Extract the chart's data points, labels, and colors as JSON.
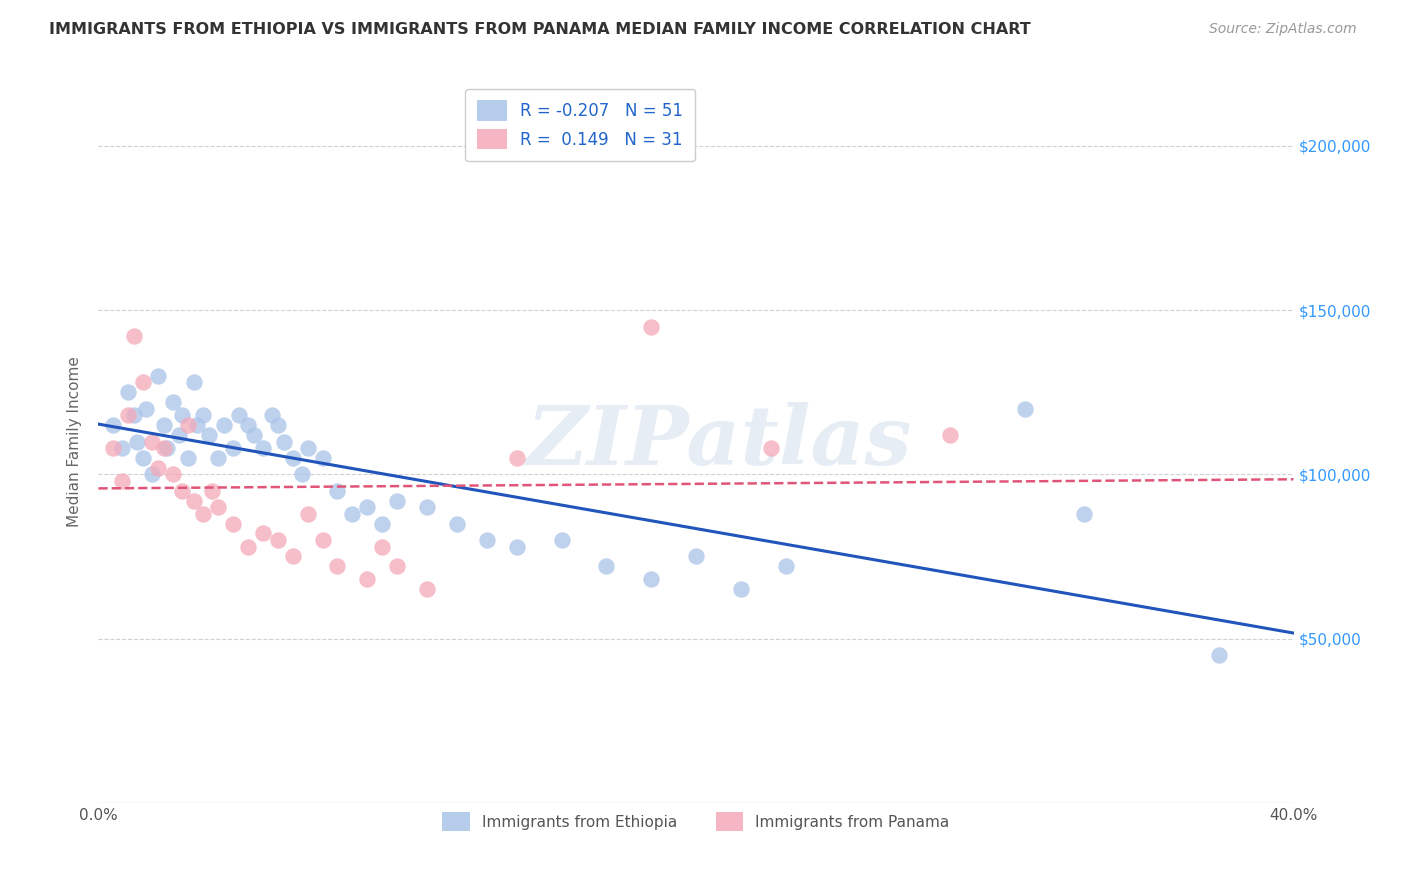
{
  "title": "IMMIGRANTS FROM ETHIOPIA VS IMMIGRANTS FROM PANAMA MEDIAN FAMILY INCOME CORRELATION CHART",
  "source": "Source: ZipAtlas.com",
  "ylabel": "Median Family Income",
  "xlim": [
    0.0,
    0.4
  ],
  "ylim": [
    0,
    220000
  ],
  "yticks": [
    0,
    50000,
    100000,
    150000,
    200000
  ],
  "ytick_labels_right": [
    "",
    "$50,000",
    "$100,000",
    "$150,000",
    "$200,000"
  ],
  "xticks": [
    0.0,
    0.1,
    0.2,
    0.3,
    0.4
  ],
  "xtick_labels": [
    "0.0%",
    "",
    "",
    "",
    "40.0%"
  ],
  "grid_color": "#cccccc",
  "background_color": "#ffffff",
  "ethiopia_color": "#aac4e8",
  "panama_color": "#f4a8b8",
  "ethiopia_line_color": "#2255bb",
  "panama_line_color": "#e05577",
  "ethiopia_R": -0.207,
  "ethiopia_N": 51,
  "panama_R": 0.149,
  "panama_N": 31,
  "ethiopia_scatter_x": [
    0.005,
    0.008,
    0.01,
    0.012,
    0.013,
    0.015,
    0.016,
    0.018,
    0.02,
    0.022,
    0.023,
    0.025,
    0.027,
    0.028,
    0.03,
    0.032,
    0.033,
    0.035,
    0.037,
    0.04,
    0.042,
    0.045,
    0.047,
    0.05,
    0.052,
    0.055,
    0.058,
    0.06,
    0.062,
    0.065,
    0.068,
    0.07,
    0.075,
    0.08,
    0.085,
    0.09,
    0.095,
    0.1,
    0.11,
    0.12,
    0.13,
    0.14,
    0.155,
    0.17,
    0.185,
    0.2,
    0.215,
    0.23,
    0.31,
    0.33,
    0.375
  ],
  "ethiopia_scatter_y": [
    115000,
    108000,
    125000,
    118000,
    110000,
    105000,
    120000,
    100000,
    130000,
    115000,
    108000,
    122000,
    112000,
    118000,
    105000,
    128000,
    115000,
    118000,
    112000,
    105000,
    115000,
    108000,
    118000,
    115000,
    112000,
    108000,
    118000,
    115000,
    110000,
    105000,
    100000,
    108000,
    105000,
    95000,
    88000,
    90000,
    85000,
    92000,
    90000,
    85000,
    80000,
    78000,
    80000,
    72000,
    68000,
    75000,
    65000,
    72000,
    120000,
    88000,
    45000
  ],
  "panama_scatter_x": [
    0.005,
    0.008,
    0.01,
    0.012,
    0.015,
    0.018,
    0.02,
    0.022,
    0.025,
    0.028,
    0.03,
    0.032,
    0.035,
    0.038,
    0.04,
    0.045,
    0.05,
    0.055,
    0.06,
    0.065,
    0.07,
    0.075,
    0.08,
    0.09,
    0.095,
    0.1,
    0.11,
    0.14,
    0.185,
    0.225,
    0.285
  ],
  "panama_scatter_y": [
    108000,
    98000,
    118000,
    142000,
    128000,
    110000,
    102000,
    108000,
    100000,
    95000,
    115000,
    92000,
    88000,
    95000,
    90000,
    85000,
    78000,
    82000,
    80000,
    75000,
    88000,
    80000,
    72000,
    68000,
    78000,
    72000,
    65000,
    105000,
    145000,
    108000,
    112000
  ],
  "watermark_text": "ZIPatlas",
  "title_fontsize": 11.5,
  "axis_label_fontsize": 11,
  "legend_fontsize": 12,
  "tick_fontsize": 11,
  "source_fontsize": 10
}
